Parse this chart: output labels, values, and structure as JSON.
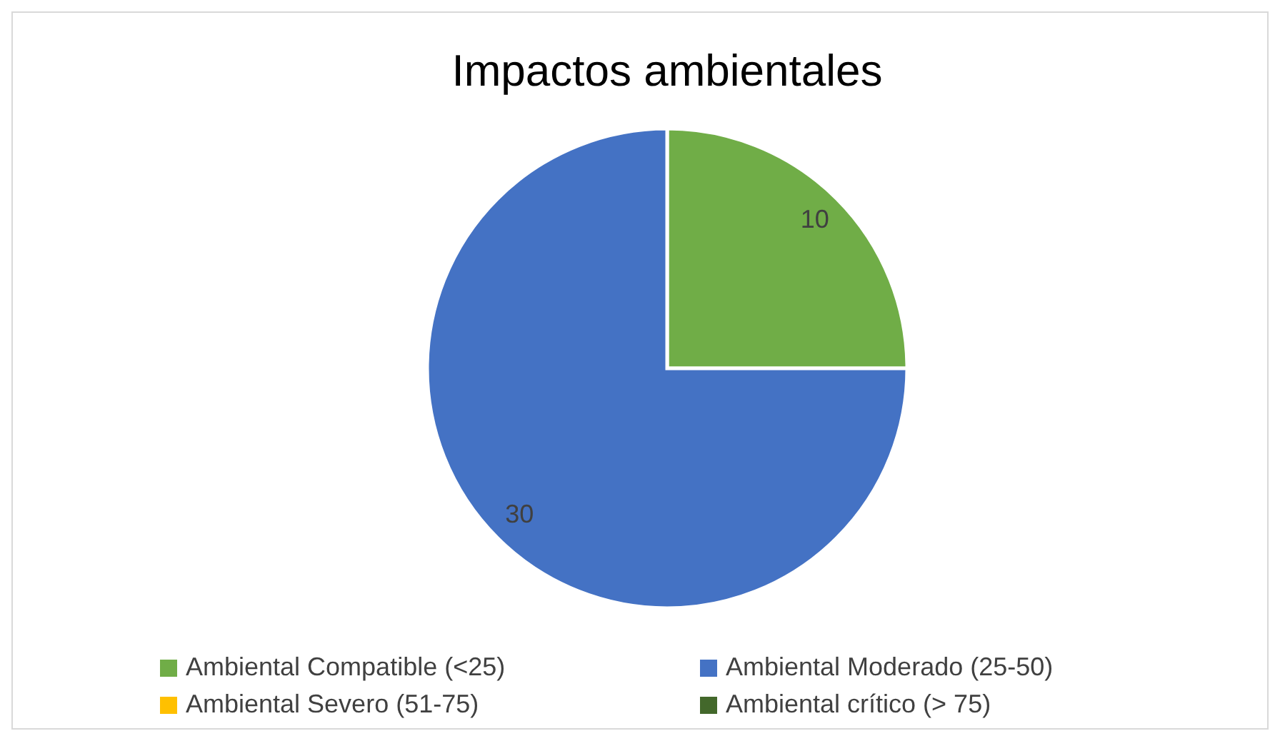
{
  "chart_data": {
    "type": "pie",
    "title": "Impactos ambientales",
    "categories": [
      "Ambiental Compatible (<25)",
      "Ambiental Moderado (25-50)",
      "Ambiental Severo (51-75)",
      "Ambiental crítico (> 75)"
    ],
    "values": [
      10,
      30,
      0,
      0
    ],
    "colors": [
      "#70ad47",
      "#4472c4",
      "#ffc000",
      "#43682b"
    ],
    "value_labels": [
      "10",
      "30",
      null,
      null
    ],
    "legend": "bottom"
  }
}
